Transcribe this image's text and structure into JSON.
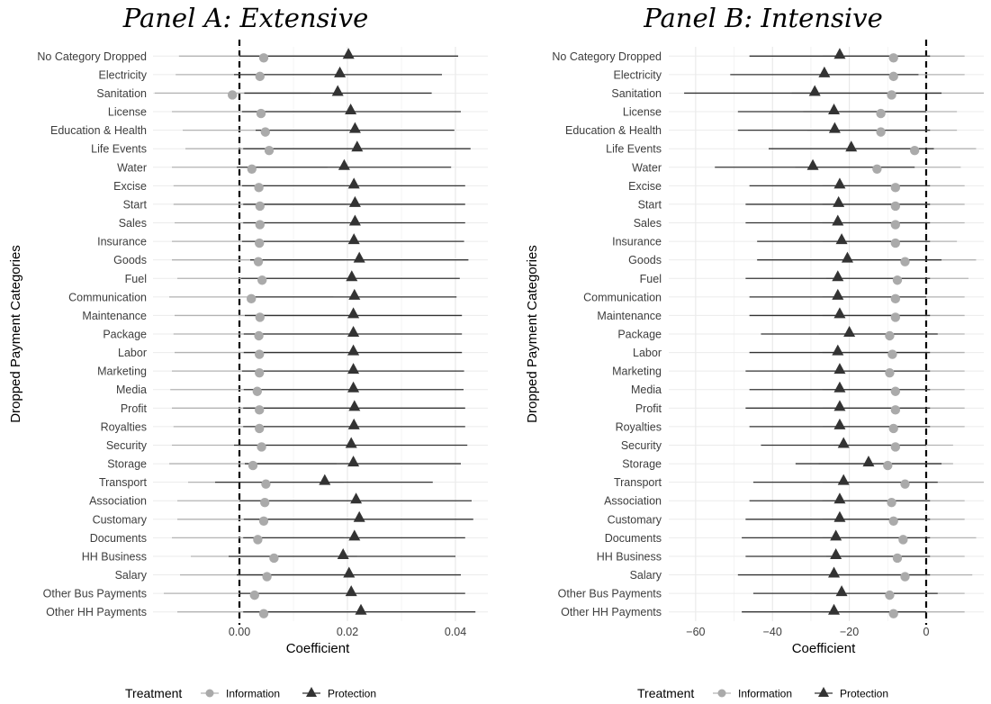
{
  "chart_data": [
    {
      "type": "scatter",
      "title": "Panel A: Extensive",
      "xlabel": "Coefficient",
      "ylabel": "Dropped Payment Categories",
      "xlim": [
        -0.016,
        0.046
      ],
      "xticks": [
        "0.00",
        "0.02",
        "0.04"
      ],
      "xtick_values": [
        0,
        0.02,
        0.04
      ],
      "reference_line": 0,
      "categories": [
        "No Category Dropped",
        "Electricity",
        "Sanitation",
        "License",
        "Education & Health",
        "Life Events",
        "Water",
        "Excise",
        "Start",
        "Sales",
        "Insurance",
        "Goods",
        "Fuel",
        "Communication",
        "Maintenance",
        "Package",
        "Labor",
        "Marketing",
        "Media",
        "Profit",
        "Royalties",
        "Security",
        "Storage",
        "Transport",
        "Association",
        "Customary",
        "Documents",
        "HH Business",
        "Salary",
        "Other Bus Payments",
        "Other HH Payments"
      ],
      "series": [
        {
          "name": "Information",
          "color": "#aaaaaa",
          "marker": "circle",
          "estimates": [
            0.0045,
            0.0038,
            -0.0013,
            0.004,
            0.0048,
            0.0055,
            0.0023,
            0.0036,
            0.0038,
            0.0038,
            0.0037,
            0.0035,
            0.0042,
            0.0022,
            0.0038,
            0.0036,
            0.0037,
            0.0037,
            0.0033,
            0.0037,
            0.0037,
            0.0041,
            0.0025,
            0.0049,
            0.0047,
            0.0045,
            0.0034,
            0.0064,
            0.0051,
            0.0028,
            0.0045
          ],
          "ci_low": [
            -0.0112,
            -0.0118,
            -0.0157,
            -0.0125,
            -0.0105,
            -0.01,
            -0.0125,
            -0.0122,
            -0.0122,
            -0.012,
            -0.0125,
            -0.0125,
            -0.0115,
            -0.013,
            -0.012,
            -0.0122,
            -0.012,
            -0.0125,
            -0.0128,
            -0.0125,
            -0.0122,
            -0.0125,
            -0.013,
            -0.0095,
            -0.0115,
            -0.0115,
            -0.0125,
            -0.009,
            -0.011,
            -0.014,
            -0.0115
          ],
          "ci_high": [
            0.0202,
            0.0194,
            0.0131,
            0.0205,
            0.0201,
            0.021,
            0.0163,
            0.0195,
            0.0198,
            0.0196,
            0.0199,
            0.0195,
            0.02,
            0.0174,
            0.0196,
            0.0194,
            0.0194,
            0.0199,
            0.0194,
            0.0199,
            0.0196,
            0.0207,
            0.018,
            0.0193,
            0.0209,
            0.0205,
            0.0193,
            0.0218,
            0.0212,
            0.0196,
            0.0205
          ]
        },
        {
          "name": "Protection",
          "color": "#333333",
          "marker": "triangle",
          "estimates": [
            0.0202,
            0.0186,
            0.0182,
            0.0206,
            0.0214,
            0.0218,
            0.0194,
            0.0212,
            0.0214,
            0.0214,
            0.0212,
            0.0222,
            0.0208,
            0.0213,
            0.0211,
            0.0211,
            0.0211,
            0.0211,
            0.0211,
            0.0213,
            0.0212,
            0.0207,
            0.0211,
            0.0158,
            0.0216,
            0.0222,
            0.0213,
            0.0192,
            0.0203,
            0.0207,
            0.0225
          ],
          "ci_low": [
            0.0,
            -0.001,
            0.0009,
            0.0005,
            0.003,
            0.0007,
            -0.0005,
            0.0005,
            0.0007,
            0.0007,
            0.0005,
            0.002,
            0.0003,
            0.0025,
            0.001,
            0.0008,
            0.0008,
            0.0005,
            0.0008,
            0.0007,
            0.0007,
            -0.001,
            0.001,
            -0.0045,
            0.0,
            0.0008,
            0.0007,
            -0.002,
            -0.0005,
            0.0,
            0.0007
          ],
          "ci_high": [
            0.0405,
            0.0375,
            0.0356,
            0.041,
            0.0398,
            0.0428,
            0.0392,
            0.0418,
            0.0418,
            0.0418,
            0.0416,
            0.0424,
            0.0408,
            0.0402,
            0.0412,
            0.0412,
            0.0412,
            0.0416,
            0.0415,
            0.0418,
            0.0418,
            0.0422,
            0.041,
            0.0358,
            0.043,
            0.0433,
            0.0418,
            0.04,
            0.041,
            0.0418,
            0.0437
          ]
        }
      ]
    },
    {
      "type": "scatter",
      "title": "Panel B: Intensive",
      "xlabel": "Coefficient",
      "ylabel": "Dropped Payment Categories",
      "xlim": [
        -67,
        15
      ],
      "xticks": [
        "−60",
        "−40",
        "−20",
        "0"
      ],
      "xtick_values": [
        -60,
        -40,
        -20,
        0
      ],
      "reference_line": 0,
      "categories": [
        "No Category Dropped",
        "Electricity",
        "Sanitation",
        "License",
        "Education & Health",
        "Life Events",
        "Water",
        "Excise",
        "Start",
        "Sales",
        "Insurance",
        "Goods",
        "Fuel",
        "Communication",
        "Maintenance",
        "Package",
        "Labor",
        "Marketing",
        "Media",
        "Profit",
        "Royalties",
        "Security",
        "Storage",
        "Transport",
        "Association",
        "Customary",
        "Documents",
        "HH Business",
        "Salary",
        "Other Bus Payments",
        "Other HH Payments"
      ],
      "series": [
        {
          "name": "Information",
          "color": "#aaaaaa",
          "marker": "circle",
          "estimates": [
            -8.5,
            -8.5,
            -9.0,
            -11.8,
            -11.8,
            -3.0,
            -12.8,
            -8.0,
            -8.0,
            -8.0,
            -8.0,
            -5.5,
            -7.5,
            -8.0,
            -8.0,
            -9.5,
            -8.8,
            -9.5,
            -8.0,
            -8.0,
            -8.5,
            -8.0,
            -10.0,
            -5.5,
            -9.0,
            -8.5,
            -6.0,
            -7.5,
            -5.5,
            -9.5,
            -8.5
          ],
          "ci_low": [
            -27,
            -27,
            -35,
            -32,
            -31,
            -19,
            -34,
            -27,
            -27,
            -27,
            -27,
            -25,
            -26,
            -27,
            -27,
            -28,
            -27,
            -28,
            -27,
            -27,
            -27,
            -24,
            -28,
            -27,
            -27,
            -27,
            -27,
            -26,
            -24,
            -29,
            -27
          ],
          "ci_high": [
            10,
            10,
            15,
            8,
            8,
            13,
            9,
            10,
            10,
            10,
            8,
            13,
            11,
            10,
            10,
            10,
            10,
            10,
            10,
            10,
            10,
            7,
            7,
            15,
            10,
            10,
            13,
            10,
            12,
            10,
            10
          ]
        },
        {
          "name": "Protection",
          "color": "#333333",
          "marker": "triangle",
          "estimates": [
            -22.5,
            -26.5,
            -29.0,
            -24.0,
            -23.8,
            -19.5,
            -29.5,
            -22.5,
            -22.8,
            -23.0,
            -22.0,
            -20.5,
            -23.0,
            -23.0,
            -22.5,
            -20.0,
            -23.0,
            -22.5,
            -22.5,
            -22.5,
            -22.5,
            -21.5,
            -15.0,
            -21.5,
            -22.5,
            -22.5,
            -23.5,
            -23.5,
            -24.0,
            -22.0,
            -24.0
          ],
          "ci_low": [
            -46,
            -51,
            -63,
            -49,
            -49,
            -41,
            -55,
            -46,
            -47,
            -47,
            -44,
            -44,
            -47,
            -46,
            -46,
            -43,
            -46,
            -47,
            -46,
            -47,
            -46,
            -43,
            -34,
            -45,
            -46,
            -47,
            -48,
            -47,
            -49,
            -45,
            -48
          ],
          "ci_high": [
            1,
            -2,
            4,
            0,
            1,
            2,
            -3,
            1,
            1,
            1,
            1,
            4,
            1,
            0,
            1,
            3,
            1,
            1,
            1,
            1,
            1,
            0,
            4,
            3,
            1,
            1,
            1,
            1,
            1,
            3,
            0
          ]
        }
      ]
    }
  ],
  "legend": {
    "title": "Treatment",
    "items": [
      "Information",
      "Protection"
    ]
  }
}
